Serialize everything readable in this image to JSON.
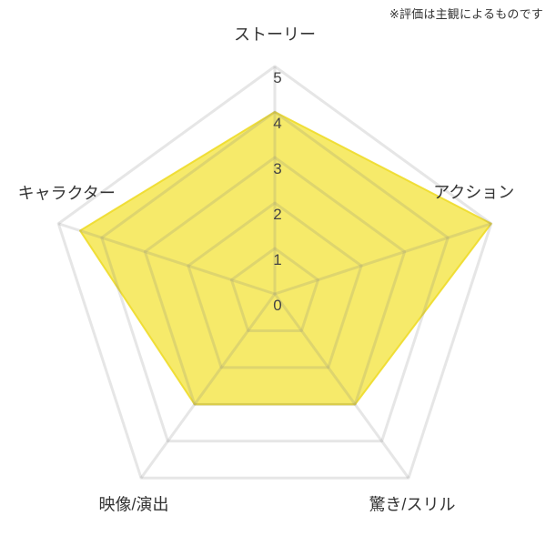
{
  "note": "※評価は主観によるものです",
  "chart_data": {
    "type": "radar",
    "title": "",
    "categories": [
      "ストーリー",
      "アクション",
      "驚き/スリル",
      "映像/演出",
      "キャラクター"
    ],
    "values": [
      4,
      5,
      3,
      3,
      4.5
    ],
    "scale": {
      "min": 0,
      "max": 5,
      "step": 1,
      "tick_labels": [
        "0",
        "1",
        "2",
        "3",
        "4",
        "5"
      ]
    },
    "layout_hints": {
      "grid": "pentagon-rings",
      "legend": "none",
      "axis_start": "top",
      "direction": "clockwise"
    },
    "colors": {
      "fill": "#F3E230",
      "fill_opacity": 0.72,
      "stroke": "#EEDC2A",
      "grid_line": "rgba(130,130,130,0.20)",
      "tick_text": "#444444",
      "label_text": "#333333"
    }
  }
}
